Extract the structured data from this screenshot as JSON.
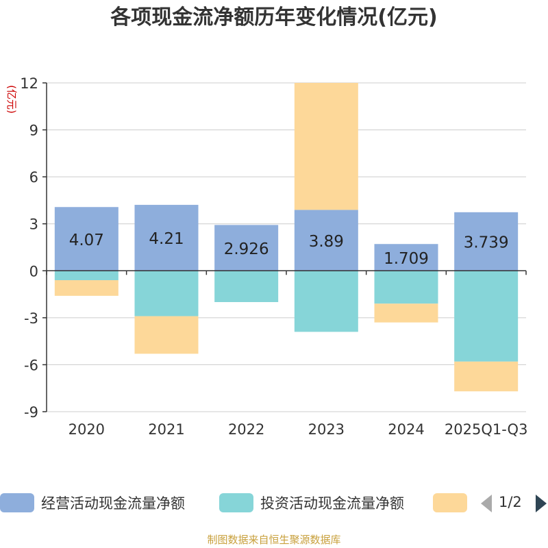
{
  "chart_data": {
    "type": "bar",
    "stacked": true,
    "title": "各项现金流净额历年变化情况(亿元)",
    "ylabel": "(亿元)",
    "ylim": [
      -9,
      12
    ],
    "yticks": [
      12,
      9,
      6,
      3,
      0,
      -3,
      -6,
      -9
    ],
    "grid": true,
    "categories": [
      "2020",
      "2021",
      "2022",
      "2023",
      "2024",
      "2025Q1-Q3"
    ],
    "series": [
      {
        "name": "经营活动现金流量净额",
        "color": "#8eaedc",
        "values": [
          4.07,
          4.21,
          2.926,
          3.89,
          1.709,
          3.739
        ]
      },
      {
        "name": "投资活动现金流量净额",
        "color": "#86d5d8",
        "values": [
          -0.6,
          -2.9,
          -2.0,
          -3.9,
          -2.1,
          -5.8
        ]
      },
      {
        "name": "",
        "color": "#fdd899",
        "values": [
          -1.0,
          -2.4,
          0.0,
          8.2,
          -1.2,
          -1.9
        ]
      }
    ],
    "data_labels": [
      "4.07",
      "4.21",
      "2.926",
      "3.89",
      "1.709",
      "3.739"
    ],
    "legend_position": "bottom"
  },
  "legend": {
    "page": "1/2"
  },
  "source": "制图数据来自恒生聚源数据库"
}
